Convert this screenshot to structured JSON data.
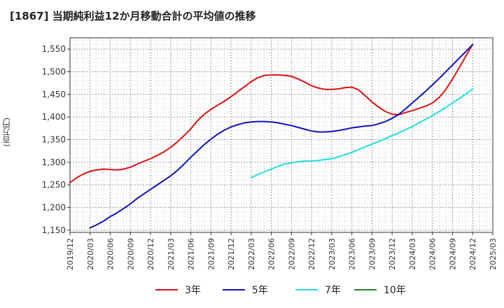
{
  "title": "[1867]  当期純利益12か月移動合計の平均値の推移",
  "ylabel": "(百万円)",
  "chart_data": {
    "type": "line",
    "title": "[1867]  当期純利益12か月移動合計の平均値の推移",
    "ylabel": "(百万円)",
    "ylim": [
      1145,
      1575
    ],
    "yticks": [
      1150,
      1200,
      1250,
      1300,
      1350,
      1400,
      1450,
      1500,
      1550
    ],
    "ytick_labels": [
      "1,150",
      "1,200",
      "1,250",
      "1,300",
      "1,350",
      "1,400",
      "1,450",
      "1,500",
      "1,550"
    ],
    "xticks": [
      "2019/12",
      "2020/03",
      "2020/06",
      "2020/09",
      "2020/12",
      "2021/03",
      "2021/06",
      "2021/09",
      "2021/12",
      "2022/03",
      "2022/06",
      "2022/09",
      "2022/12",
      "2023/03",
      "2023/06",
      "2023/09",
      "2023/12",
      "2024/03",
      "2024/06",
      "2024/09",
      "2024/12",
      "2025/03"
    ],
    "grid": true,
    "legend_position": "bottom",
    "series": [
      {
        "name": "3年",
        "color": "#dd1111",
        "points": [
          [
            "2019/12",
            1255
          ],
          [
            "2020/01",
            1266
          ],
          [
            "2020/02",
            1274
          ],
          [
            "2020/03",
            1280
          ],
          [
            "2020/04",
            1283
          ],
          [
            "2020/05",
            1285
          ],
          [
            "2020/06",
            1284
          ],
          [
            "2020/07",
            1283
          ],
          [
            "2020/08",
            1285
          ],
          [
            "2020/09",
            1289
          ],
          [
            "2020/10",
            1296
          ],
          [
            "2020/11",
            1302
          ],
          [
            "2020/12",
            1308
          ],
          [
            "2021/01",
            1315
          ],
          [
            "2021/02",
            1323
          ],
          [
            "2021/03",
            1333
          ],
          [
            "2021/04",
            1345
          ],
          [
            "2021/05",
            1359
          ],
          [
            "2021/06",
            1374
          ],
          [
            "2021/07",
            1392
          ],
          [
            "2021/08",
            1406
          ],
          [
            "2021/09",
            1417
          ],
          [
            "2021/10",
            1426
          ],
          [
            "2021/11",
            1435
          ],
          [
            "2021/12",
            1445
          ],
          [
            "2022/01",
            1456
          ],
          [
            "2022/02",
            1467
          ],
          [
            "2022/03",
            1478
          ],
          [
            "2022/04",
            1487
          ],
          [
            "2022/05",
            1492
          ],
          [
            "2022/06",
            1493
          ],
          [
            "2022/07",
            1493
          ],
          [
            "2022/08",
            1492
          ],
          [
            "2022/09",
            1490
          ],
          [
            "2022/10",
            1484
          ],
          [
            "2022/11",
            1477
          ],
          [
            "2022/12",
            1469
          ],
          [
            "2023/01",
            1464
          ],
          [
            "2023/02",
            1461
          ],
          [
            "2023/03",
            1461
          ],
          [
            "2023/04",
            1462
          ],
          [
            "2023/05",
            1465
          ],
          [
            "2023/06",
            1466
          ],
          [
            "2023/07",
            1460
          ],
          [
            "2023/08",
            1447
          ],
          [
            "2023/09",
            1433
          ],
          [
            "2023/10",
            1422
          ],
          [
            "2023/11",
            1412
          ],
          [
            "2023/12",
            1406
          ],
          [
            "2024/01",
            1405
          ],
          [
            "2024/02",
            1410
          ],
          [
            "2024/03",
            1414
          ],
          [
            "2024/04",
            1419
          ],
          [
            "2024/05",
            1424
          ],
          [
            "2024/06",
            1431
          ],
          [
            "2024/07",
            1443
          ],
          [
            "2024/08",
            1461
          ],
          [
            "2024/09",
            1484
          ],
          [
            "2024/10",
            1509
          ],
          [
            "2024/11",
            1535
          ],
          [
            "2024/12",
            1561
          ]
        ]
      },
      {
        "name": "5年",
        "color": "#1111bb",
        "points": [
          [
            "2020/03",
            1155
          ],
          [
            "2020/04",
            1162
          ],
          [
            "2020/05",
            1170
          ],
          [
            "2020/06",
            1180
          ],
          [
            "2020/07",
            1188
          ],
          [
            "2020/08",
            1198
          ],
          [
            "2020/09",
            1208
          ],
          [
            "2020/10",
            1220
          ],
          [
            "2020/11",
            1230
          ],
          [
            "2020/12",
            1240
          ],
          [
            "2021/01",
            1250
          ],
          [
            "2021/02",
            1260
          ],
          [
            "2021/03",
            1270
          ],
          [
            "2021/04",
            1282
          ],
          [
            "2021/05",
            1296
          ],
          [
            "2021/06",
            1311
          ],
          [
            "2021/07",
            1325
          ],
          [
            "2021/08",
            1339
          ],
          [
            "2021/09",
            1351
          ],
          [
            "2021/10",
            1362
          ],
          [
            "2021/11",
            1371
          ],
          [
            "2021/12",
            1378
          ],
          [
            "2022/01",
            1383
          ],
          [
            "2022/02",
            1387
          ],
          [
            "2022/03",
            1389
          ],
          [
            "2022/04",
            1390
          ],
          [
            "2022/05",
            1390
          ],
          [
            "2022/06",
            1389
          ],
          [
            "2022/07",
            1387
          ],
          [
            "2022/08",
            1384
          ],
          [
            "2022/09",
            1381
          ],
          [
            "2022/10",
            1377
          ],
          [
            "2022/11",
            1373
          ],
          [
            "2022/12",
            1369
          ],
          [
            "2023/01",
            1367
          ],
          [
            "2023/02",
            1367
          ],
          [
            "2023/03",
            1368
          ],
          [
            "2023/04",
            1370
          ],
          [
            "2023/05",
            1373
          ],
          [
            "2023/06",
            1376
          ],
          [
            "2023/07",
            1378
          ],
          [
            "2023/08",
            1380
          ],
          [
            "2023/09",
            1381
          ],
          [
            "2023/10",
            1385
          ],
          [
            "2023/11",
            1390
          ],
          [
            "2023/12",
            1397
          ],
          [
            "2024/01",
            1406
          ],
          [
            "2024/02",
            1418
          ],
          [
            "2024/03",
            1431
          ],
          [
            "2024/04",
            1444
          ],
          [
            "2024/05",
            1457
          ],
          [
            "2024/06",
            1471
          ],
          [
            "2024/07",
            1485
          ],
          [
            "2024/08",
            1500
          ],
          [
            "2024/09",
            1515
          ],
          [
            "2024/10",
            1530
          ],
          [
            "2024/11",
            1545
          ],
          [
            "2024/12",
            1560
          ]
        ]
      },
      {
        "name": "7年",
        "color": "#22dddd",
        "points": [
          [
            "2022/03",
            1266
          ],
          [
            "2022/04",
            1273
          ],
          [
            "2022/05",
            1279
          ],
          [
            "2022/06",
            1285
          ],
          [
            "2022/07",
            1291
          ],
          [
            "2022/08",
            1296
          ],
          [
            "2022/09",
            1299
          ],
          [
            "2022/10",
            1301
          ],
          [
            "2022/11",
            1303
          ],
          [
            "2022/12",
            1303
          ],
          [
            "2023/01",
            1304
          ],
          [
            "2023/02",
            1306
          ],
          [
            "2023/03",
            1308
          ],
          [
            "2023/04",
            1312
          ],
          [
            "2023/05",
            1317
          ],
          [
            "2023/06",
            1322
          ],
          [
            "2023/07",
            1328
          ],
          [
            "2023/08",
            1334
          ],
          [
            "2023/09",
            1340
          ],
          [
            "2023/10",
            1346
          ],
          [
            "2023/11",
            1352
          ],
          [
            "2023/12",
            1359
          ],
          [
            "2024/01",
            1365
          ],
          [
            "2024/02",
            1372
          ],
          [
            "2024/03",
            1379
          ],
          [
            "2024/04",
            1387
          ],
          [
            "2024/05",
            1395
          ],
          [
            "2024/06",
            1403
          ],
          [
            "2024/07",
            1412
          ],
          [
            "2024/08",
            1421
          ],
          [
            "2024/09",
            1431
          ],
          [
            "2024/10",
            1441
          ],
          [
            "2024/11",
            1451
          ],
          [
            "2024/12",
            1462
          ]
        ]
      },
      {
        "name": "10年",
        "color": "#228822",
        "points": []
      }
    ]
  }
}
